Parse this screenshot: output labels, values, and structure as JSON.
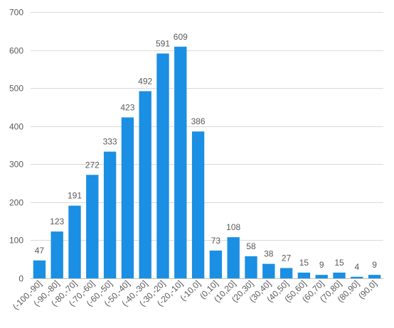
{
  "chart_data": {
    "type": "bar",
    "categories": [
      "(-100,-90]",
      "(-90,-80]",
      "(-80,-70]",
      "(-70,-60]",
      "(-60,-50]",
      "(-50,-40]",
      "(-40,-30]",
      "(-30,-20]",
      "(-20,-10]",
      "(-10,0]",
      "(0,10]",
      "(10,20]",
      "(20,30]",
      "(30,40]",
      "(40,50]",
      "(50,60]",
      "(60,70]",
      "(70,80]",
      "(80,90]",
      "(90,0]"
    ],
    "values": [
      47,
      123,
      191,
      272,
      333,
      423,
      492,
      591,
      609,
      386,
      73,
      108,
      58,
      38,
      27,
      15,
      9,
      15,
      4,
      9
    ],
    "ylim": [
      0,
      700
    ],
    "yticks": [
      0,
      100,
      200,
      300,
      400,
      500,
      600,
      700
    ],
    "grid": true,
    "bar_color": "#1A8FE3"
  }
}
